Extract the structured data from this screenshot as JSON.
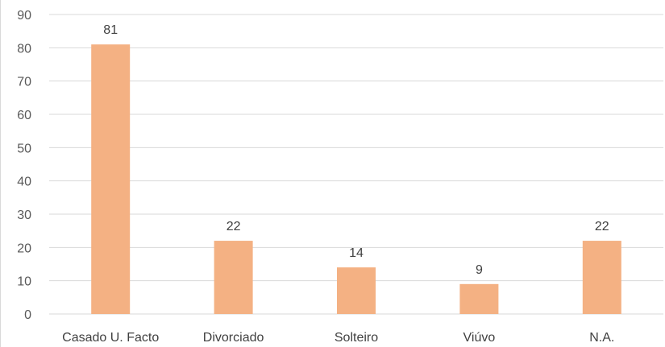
{
  "chart_data": {
    "type": "bar",
    "title": "",
    "xlabel": "",
    "ylabel": "",
    "categories": [
      "Casado U. Facto",
      "Divorciado",
      "Solteiro",
      "Viúvo",
      "N.A."
    ],
    "values": [
      81,
      22,
      14,
      9,
      22
    ],
    "ylim": [
      0,
      90
    ],
    "yticks": [
      0,
      10,
      20,
      30,
      40,
      50,
      60,
      70,
      80,
      90
    ],
    "grid": true,
    "legend": "none",
    "data_labels": true,
    "bar_color": "#F4B183"
  }
}
